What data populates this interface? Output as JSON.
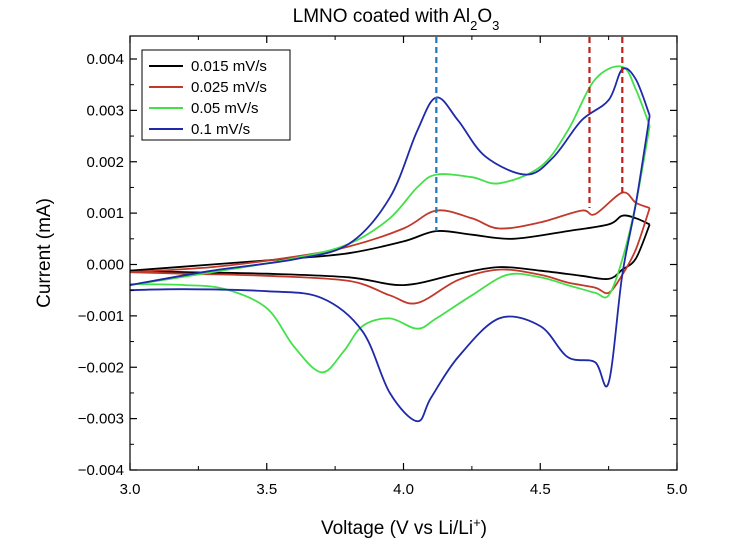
{
  "chart_data": {
    "type": "line",
    "title": {
      "main": "LMNO coated with Al",
      "sub": "2",
      "main2": "O",
      "sub2": "3"
    },
    "xlabel": {
      "main": "Voltage (V vs Li/Li",
      "sup": "+",
      "end": ")"
    },
    "ylabel": "Current (mA)",
    "xlim": [
      3.0,
      5.0
    ],
    "ylim": [
      -0.004,
      0.0042
    ],
    "xticks": [
      "3.0",
      "3.5",
      "4.0",
      "4.5",
      "5.0"
    ],
    "xtick_values": [
      3.0,
      3.5,
      4.0,
      4.5,
      5.0
    ],
    "yticks": [
      "0.004",
      "0.003",
      "0.002",
      "0.001",
      "0.000",
      "−0.001",
      "−0.002",
      "−0.003",
      "−0.004"
    ],
    "ytick_values": [
      0.004,
      0.003,
      0.002,
      0.001,
      0.0,
      -0.001,
      -0.002,
      -0.003,
      -0.004
    ],
    "legend_position": "top-left",
    "grid": false,
    "vlines": [
      {
        "x": 4.12,
        "color": "#1f77b4",
        "style": "dashed"
      },
      {
        "x": 4.68,
        "color": "#c0201a",
        "style": "dashed"
      },
      {
        "x": 4.8,
        "color": "#c0201a",
        "style": "dashed"
      }
    ],
    "series": [
      {
        "name": "0.015 mV/s",
        "color": "#000000",
        "anodic": [
          [
            3.0,
            -0.00012
          ],
          [
            3.3,
            0.0
          ],
          [
            3.6,
            0.00012
          ],
          [
            3.8,
            0.00022
          ],
          [
            4.0,
            0.00045
          ],
          [
            4.12,
            0.00065
          ],
          [
            4.25,
            0.00058
          ],
          [
            4.4,
            0.0005
          ],
          [
            4.6,
            0.00065
          ],
          [
            4.75,
            0.00078
          ],
          [
            4.8,
            0.00095
          ],
          [
            4.85,
            0.0009
          ],
          [
            4.9,
            0.00078
          ]
        ],
        "cathodic": [
          [
            4.9,
            0.00078
          ],
          [
            4.85,
            0.00012
          ],
          [
            4.8,
            -0.0001
          ],
          [
            4.75,
            -0.00028
          ],
          [
            4.65,
            -0.00022
          ],
          [
            4.5,
            -0.00012
          ],
          [
            4.35,
            -5e-05
          ],
          [
            4.2,
            -0.00018
          ],
          [
            4.0,
            -0.0004
          ],
          [
            3.8,
            -0.00025
          ],
          [
            3.5,
            -0.00018
          ],
          [
            3.2,
            -0.00015
          ],
          [
            3.0,
            -0.00012
          ]
        ]
      },
      {
        "name": "0.025 mV/s",
        "color": "#c0392b",
        "anodic": [
          [
            3.0,
            -0.00015
          ],
          [
            3.3,
            -5e-05
          ],
          [
            3.6,
            0.00015
          ],
          [
            3.8,
            0.00035
          ],
          [
            4.0,
            0.0007
          ],
          [
            4.12,
            0.00105
          ],
          [
            4.25,
            0.0009
          ],
          [
            4.35,
            0.0007
          ],
          [
            4.5,
            0.00082
          ],
          [
            4.65,
            0.00105
          ],
          [
            4.7,
            0.00098
          ],
          [
            4.8,
            0.0014
          ],
          [
            4.85,
            0.0012
          ],
          [
            4.9,
            0.0011
          ]
        ],
        "cathodic": [
          [
            4.9,
            0.0011
          ],
          [
            4.85,
            0.0003
          ],
          [
            4.8,
            -0.0002
          ],
          [
            4.75,
            -0.00055
          ],
          [
            4.7,
            -0.00045
          ],
          [
            4.6,
            -0.00035
          ],
          [
            4.5,
            -0.0002
          ],
          [
            4.35,
            -0.0001
          ],
          [
            4.2,
            -0.0003
          ],
          [
            4.05,
            -0.00075
          ],
          [
            3.95,
            -0.0006
          ],
          [
            3.8,
            -0.00032
          ],
          [
            3.5,
            -0.00022
          ],
          [
            3.2,
            -0.00018
          ],
          [
            3.0,
            -0.00015
          ]
        ]
      },
      {
        "name": "0.05 mV/s",
        "color": "#44e04a",
        "anodic": [
          [
            3.0,
            -0.0004
          ],
          [
            3.3,
            -0.00015
          ],
          [
            3.6,
            0.00012
          ],
          [
            3.8,
            0.0004
          ],
          [
            3.95,
            0.0009
          ],
          [
            4.05,
            0.0015
          ],
          [
            4.12,
            0.00175
          ],
          [
            4.25,
            0.0017
          ],
          [
            4.35,
            0.00158
          ],
          [
            4.5,
            0.0019
          ],
          [
            4.6,
            0.0026
          ],
          [
            4.7,
            0.0036
          ],
          [
            4.8,
            0.00385
          ],
          [
            4.85,
            0.0034
          ],
          [
            4.9,
            0.0027
          ]
        ],
        "cathodic": [
          [
            4.9,
            0.0027
          ],
          [
            4.85,
            0.0012
          ],
          [
            4.8,
            0.0001
          ],
          [
            4.75,
            -0.0006
          ],
          [
            4.7,
            -0.00055
          ],
          [
            4.6,
            -0.0004
          ],
          [
            4.5,
            -0.00025
          ],
          [
            4.38,
            -0.0002
          ],
          [
            4.25,
            -0.0006
          ],
          [
            4.12,
            -0.00105
          ],
          [
            4.05,
            -0.00125
          ],
          [
            3.95,
            -0.00105
          ],
          [
            3.85,
            -0.0012
          ],
          [
            3.78,
            -0.0017
          ],
          [
            3.7,
            -0.0021
          ],
          [
            3.6,
            -0.0016
          ],
          [
            3.5,
            -0.00085
          ],
          [
            3.35,
            -0.00048
          ],
          [
            3.2,
            -0.0004
          ],
          [
            3.0,
            -0.00038
          ]
        ]
      },
      {
        "name": "0.1 mV/s",
        "color": "#1f2aa8",
        "anodic": [
          [
            3.0,
            -0.0004
          ],
          [
            3.3,
            -0.00012
          ],
          [
            3.6,
            0.0001
          ],
          [
            3.8,
            0.0004
          ],
          [
            3.95,
            0.0013
          ],
          [
            4.05,
            0.0026
          ],
          [
            4.12,
            0.00325
          ],
          [
            4.2,
            0.0028
          ],
          [
            4.3,
            0.0021
          ],
          [
            4.45,
            0.00175
          ],
          [
            4.55,
            0.0021
          ],
          [
            4.65,
            0.0028
          ],
          [
            4.75,
            0.0032
          ],
          [
            4.8,
            0.0038
          ],
          [
            4.85,
            0.0036
          ],
          [
            4.9,
            0.0029
          ]
        ],
        "cathodic": [
          [
            4.9,
            0.0029
          ],
          [
            4.85,
            0.0012
          ],
          [
            4.8,
            -0.0002
          ],
          [
            4.75,
            -0.0023
          ],
          [
            4.7,
            -0.0019
          ],
          [
            4.6,
            -0.0018
          ],
          [
            4.5,
            -0.0012
          ],
          [
            4.35,
            -0.00105
          ],
          [
            4.2,
            -0.0018
          ],
          [
            4.1,
            -0.0026
          ],
          [
            4.05,
            -0.00305
          ],
          [
            3.95,
            -0.0025
          ],
          [
            3.85,
            -0.0013
          ],
          [
            3.7,
            -0.00065
          ],
          [
            3.5,
            -0.00052
          ],
          [
            3.2,
            -0.00048
          ],
          [
            3.0,
            -0.0005
          ]
        ]
      }
    ]
  }
}
